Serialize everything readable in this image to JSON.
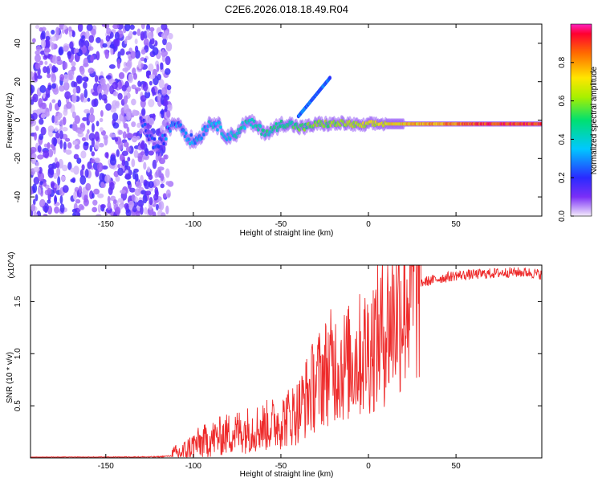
{
  "title": "C2E6.2026.018.18.49.R04",
  "colors": {
    "snr_line": "#ee2b2b",
    "axis": "#000000"
  },
  "chart_data": [
    {
      "type": "heatmap",
      "name": "spectrogram",
      "xlabel": "Height of straight line (km)",
      "ylabel": "Frequency (Hz)",
      "xlim": [
        -193,
        99
      ],
      "ylim": [
        -50,
        50
      ],
      "xticks": [
        -150,
        -100,
        -50,
        0,
        50
      ],
      "yticks": [
        -40,
        -20,
        0,
        20,
        40
      ],
      "colorbar": {
        "label": "Normalized spectral amplitude",
        "range": [
          0,
          1
        ],
        "ticks": [
          0.0,
          0.2,
          0.4,
          0.6,
          0.8
        ],
        "tick_labels": [
          "0.0",
          "0.2",
          "0.4",
          "0.6",
          "0.8"
        ],
        "colormap": "rainbow"
      },
      "features": [
        {
          "label": "noise region",
          "x_range": [
            -193,
            -113
          ],
          "amplitude": 0.1
        },
        {
          "label": "main tone",
          "x_range": [
            -130,
            99
          ],
          "frequency_hz": -2,
          "amplitude_start": 0.2,
          "amplitude_end": 0.9
        },
        {
          "label": "drift branch",
          "x_range": [
            -40,
            -22
          ],
          "frequency_start_hz": 2,
          "frequency_end_hz": 22,
          "amplitude": 0.25
        }
      ]
    },
    {
      "type": "line",
      "name": "snr",
      "xlabel": "Height of straight line (km)",
      "ylabel": "SNR (10 * v/v)",
      "y_multiplier": "(x10^4)",
      "xlim": [
        -193,
        99
      ],
      "ylim": [
        0,
        18500
      ],
      "xticks": [
        -150,
        -100,
        -50,
        0,
        50
      ],
      "yticks": [
        5000,
        10000,
        15000
      ],
      "ytick_labels": [
        "0.5",
        "1.0",
        "1.5"
      ],
      "series": [
        {
          "name": "SNR",
          "x": [
            -193,
            -150,
            -120,
            -112,
            -105,
            -100,
            -90,
            -80,
            -70,
            -60,
            -50,
            -40,
            -35,
            -30,
            -25,
            -20,
            -15,
            -10,
            -5,
            0,
            5,
            10,
            15,
            20,
            25,
            30,
            40,
            50,
            60,
            70,
            80,
            90,
            99
          ],
          "values": [
            50,
            60,
            100,
            200,
            600,
            1200,
            1800,
            2300,
            2700,
            3000,
            3500,
            4500,
            6000,
            7200,
            8200,
            9000,
            8800,
            9200,
            9800,
            10500,
            11500,
            12500,
            13800,
            15000,
            16200,
            16800,
            17200,
            17500,
            17600,
            17700,
            17800,
            17800,
            17600
          ]
        }
      ]
    }
  ]
}
